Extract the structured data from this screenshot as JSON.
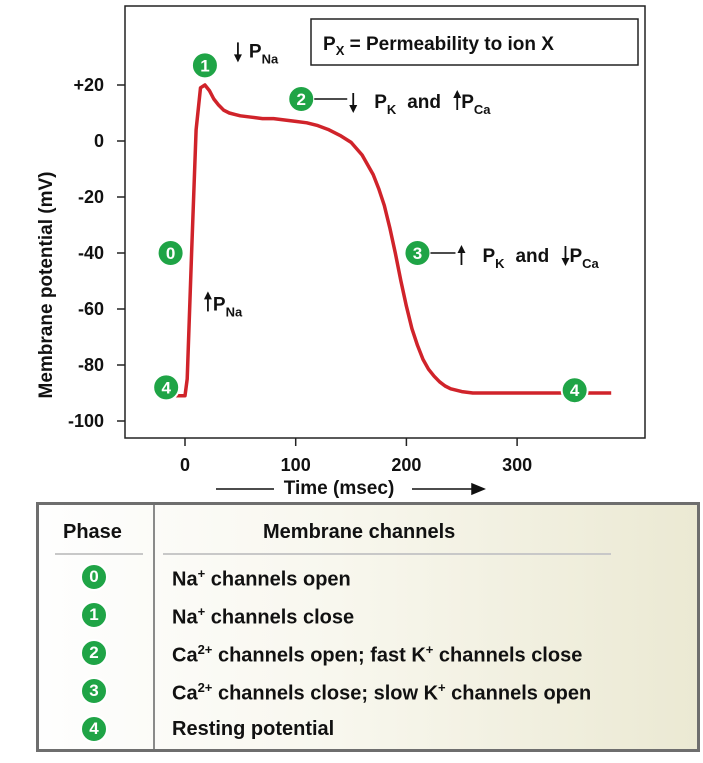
{
  "chart_data": {
    "type": "line",
    "xlabel": "Time (msec)",
    "ylabel": "Membrane potential (mV)",
    "xlim": [
      -50,
      410
    ],
    "ylim": [
      -105,
      50
    ],
    "x_ticks": [
      {
        "value": 0,
        "label": "0"
      },
      {
        "value": 100,
        "label": "100"
      },
      {
        "value": 200,
        "label": "200"
      },
      {
        "value": 300,
        "label": "300"
      }
    ],
    "y_ticks": [
      {
        "value": 20,
        "label": "+20"
      },
      {
        "value": 0,
        "label": "0"
      },
      {
        "value": -20,
        "label": "-20"
      },
      {
        "value": -40,
        "label": "-40"
      },
      {
        "value": -60,
        "label": "-60"
      },
      {
        "value": -80,
        "label": "-80"
      },
      {
        "value": -100,
        "label": "-100"
      }
    ],
    "series": [
      {
        "color": "#d0232a",
        "x": [
          -25,
          0,
          2,
          6,
          10,
          14,
          18,
          22,
          26,
          30,
          35,
          40,
          45,
          50,
          60,
          70,
          80,
          90,
          100,
          110,
          120,
          130,
          140,
          150,
          160,
          170,
          175,
          180,
          185,
          190,
          195,
          200,
          205,
          210,
          215,
          220,
          225,
          230,
          235,
          240,
          250,
          260,
          270,
          280,
          290,
          300,
          320,
          340,
          360,
          385
        ],
        "y": [
          -91,
          -91,
          -85,
          -40,
          4,
          19,
          20,
          18,
          15,
          13,
          11,
          10,
          9.5,
          9,
          8.5,
          8,
          8,
          7.5,
          7,
          6.5,
          5.5,
          4,
          2,
          -0.5,
          -5,
          -12,
          -17,
          -23,
          -31,
          -40,
          -50,
          -59,
          -67,
          -73,
          -78,
          -81.5,
          -84,
          -86,
          -87.5,
          -88.5,
          -89.5,
          -90,
          -90,
          -90,
          -90,
          -90,
          -90,
          -90,
          -90,
          -90
        ]
      }
    ],
    "legend_box": "P_X = Permeability to ion X",
    "annotations": [
      {
        "phase": "1",
        "x": 18,
        "y": 27,
        "arrow": "down",
        "ion": "Na",
        "text": "P"
      },
      {
        "phase": "2",
        "x": 105,
        "y": 15,
        "arrow": "down",
        "ion": "K",
        "text": "P",
        "joiner": "and",
        "arrow2": "up",
        "ion2": "Ca"
      },
      {
        "phase": "3",
        "x": 210,
        "y": -40,
        "arrow": "up",
        "ion": "K",
        "text": "P",
        "joiner": "and",
        "arrow2": "down",
        "ion2": "Ca"
      },
      {
        "phase": "0",
        "x": -13,
        "y": -40
      },
      {
        "phase": "4",
        "x": -17,
        "y": -88
      },
      {
        "phase": "4",
        "x": 352,
        "y": -89
      },
      {
        "arrow": "up",
        "x": 18,
        "y": -58,
        "ion": "Na",
        "text": "P"
      }
    ],
    "grid": false
  },
  "legend_table": {
    "header_phase": "Phase",
    "header_channels": "Membrane channels",
    "rows": [
      {
        "phase": "0",
        "parts": [
          "Na",
          "+",
          " channels open"
        ]
      },
      {
        "phase": "1",
        "parts": [
          "Na",
          "+",
          " channels close"
        ]
      },
      {
        "phase": "2",
        "parts": [
          "Ca",
          "2+",
          " channels open; fast K",
          "+",
          " channels close"
        ]
      },
      {
        "phase": "3",
        "parts": [
          "Ca",
          "2+",
          " channels close; slow K",
          "+",
          " channels open"
        ]
      },
      {
        "phase": "4",
        "parts": [
          "Resting potential"
        ]
      }
    ]
  },
  "colors": {
    "curve": "#d0232a",
    "badge": "#1fa446"
  }
}
